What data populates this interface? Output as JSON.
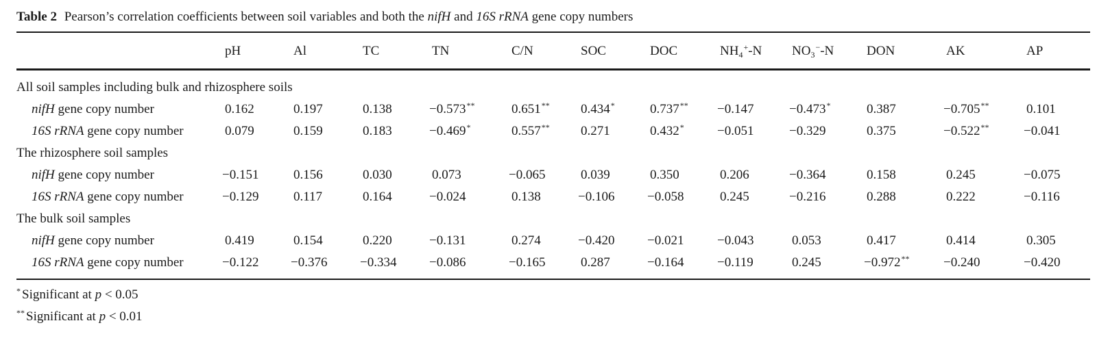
{
  "caption": {
    "label": "Table 2",
    "text_before": "Pearson’s correlation coefficients between soil variables and both the ",
    "em1": "nifH",
    "text_mid": " and ",
    "em2": "16S rRNA",
    "text_after": " gene copy numbers"
  },
  "columns": [
    {
      "base": "pH",
      "sup": "",
      "sub": "",
      "suffix": ""
    },
    {
      "base": "Al",
      "sup": "",
      "sub": "",
      "suffix": ""
    },
    {
      "base": "TC",
      "sup": "",
      "sub": "",
      "suffix": ""
    },
    {
      "base": "TN",
      "sup": "",
      "sub": "",
      "suffix": ""
    },
    {
      "base": "C/N",
      "sup": "",
      "sub": "",
      "suffix": ""
    },
    {
      "base": "SOC",
      "sup": "",
      "sub": "",
      "suffix": ""
    },
    {
      "base": "DOC",
      "sup": "",
      "sub": "",
      "suffix": ""
    },
    {
      "base": "NH",
      "sub": "4",
      "sup": "+",
      "suffix": "-N"
    },
    {
      "base": "NO",
      "sub": "3",
      "sup": "−",
      "suffix": "-N"
    },
    {
      "base": "DON",
      "sup": "",
      "sub": "",
      "suffix": ""
    },
    {
      "base": "AK",
      "sup": "",
      "sub": "",
      "suffix": ""
    },
    {
      "base": "AP",
      "sup": "",
      "sub": "",
      "suffix": ""
    }
  ],
  "sections": [
    {
      "title": "All soil samples including bulk and rhizosphere soils",
      "rows": [
        {
          "gene": "nifH",
          "suffix": " gene copy number",
          "values": [
            [
              "0.162",
              ""
            ],
            [
              "0.197",
              ""
            ],
            [
              "0.138",
              ""
            ],
            [
              "−0.573",
              "**"
            ],
            [
              "0.651",
              "**"
            ],
            [
              "0.434",
              "*"
            ],
            [
              "0.737",
              "**"
            ],
            [
              "−0.147",
              ""
            ],
            [
              "−0.473",
              "*"
            ],
            [
              "0.387",
              ""
            ],
            [
              "−0.705",
              "**"
            ],
            [
              "0.101",
              ""
            ]
          ]
        },
        {
          "gene": "16S rRNA",
          "suffix": " gene copy number",
          "values": [
            [
              "0.079",
              ""
            ],
            [
              "0.159",
              ""
            ],
            [
              "0.183",
              ""
            ],
            [
              "−0.469",
              "*"
            ],
            [
              "0.557",
              "**"
            ],
            [
              "0.271",
              ""
            ],
            [
              "0.432",
              "*"
            ],
            [
              "−0.051",
              ""
            ],
            [
              "−0.329",
              ""
            ],
            [
              "0.375",
              ""
            ],
            [
              "−0.522",
              "**"
            ],
            [
              "−0.041",
              ""
            ]
          ]
        }
      ]
    },
    {
      "title": "The rhizosphere soil samples",
      "rows": [
        {
          "gene": "nifH",
          "suffix": " gene copy number",
          "values": [
            [
              "−0.151",
              ""
            ],
            [
              "0.156",
              ""
            ],
            [
              "0.030",
              ""
            ],
            [
              "0.073",
              ""
            ],
            [
              "−0.065",
              ""
            ],
            [
              "0.039",
              ""
            ],
            [
              "0.350",
              ""
            ],
            [
              "0.206",
              ""
            ],
            [
              "−0.364",
              ""
            ],
            [
              "0.158",
              ""
            ],
            [
              "0.245",
              ""
            ],
            [
              "−0.075",
              ""
            ]
          ]
        },
        {
          "gene": "16S rRNA",
          "suffix": " gene copy number",
          "values": [
            [
              "−0.129",
              ""
            ],
            [
              "0.117",
              ""
            ],
            [
              "0.164",
              ""
            ],
            [
              "−0.024",
              ""
            ],
            [
              "0.138",
              ""
            ],
            [
              "−0.106",
              ""
            ],
            [
              "−0.058",
              ""
            ],
            [
              "0.245",
              ""
            ],
            [
              "−0.216",
              ""
            ],
            [
              "0.288",
              ""
            ],
            [
              "0.222",
              ""
            ],
            [
              "−0.116",
              ""
            ]
          ]
        }
      ]
    },
    {
      "title": "The bulk soil samples",
      "rows": [
        {
          "gene": "nifH",
          "suffix": " gene copy number",
          "values": [
            [
              "0.419",
              ""
            ],
            [
              "0.154",
              ""
            ],
            [
              "0.220",
              ""
            ],
            [
              "−0.131",
              ""
            ],
            [
              "0.274",
              ""
            ],
            [
              "−0.420",
              ""
            ],
            [
              "−0.021",
              ""
            ],
            [
              "−0.043",
              ""
            ],
            [
              "0.053",
              ""
            ],
            [
              "0.417",
              ""
            ],
            [
              "0.414",
              ""
            ],
            [
              "0.305",
              ""
            ]
          ]
        },
        {
          "gene": "16S rRNA",
          "suffix": " gene copy number",
          "values": [
            [
              "−0.122",
              ""
            ],
            [
              "−0.376",
              ""
            ],
            [
              "−0.334",
              ""
            ],
            [
              "−0.086",
              ""
            ],
            [
              "−0.165",
              ""
            ],
            [
              "0.287",
              ""
            ],
            [
              "−0.164",
              ""
            ],
            [
              "−0.119",
              ""
            ],
            [
              "0.245",
              ""
            ],
            [
              "−0.972",
              "**"
            ],
            [
              "−0.240",
              ""
            ],
            [
              "−0.420",
              ""
            ]
          ]
        }
      ]
    }
  ],
  "footnotes": [
    {
      "mark": "*",
      "text": "Significant at ",
      "var": "p",
      "rest": " < 0.05"
    },
    {
      "mark": "**",
      "text": "Significant at ",
      "var": "p",
      "rest": " < 0.01"
    }
  ]
}
